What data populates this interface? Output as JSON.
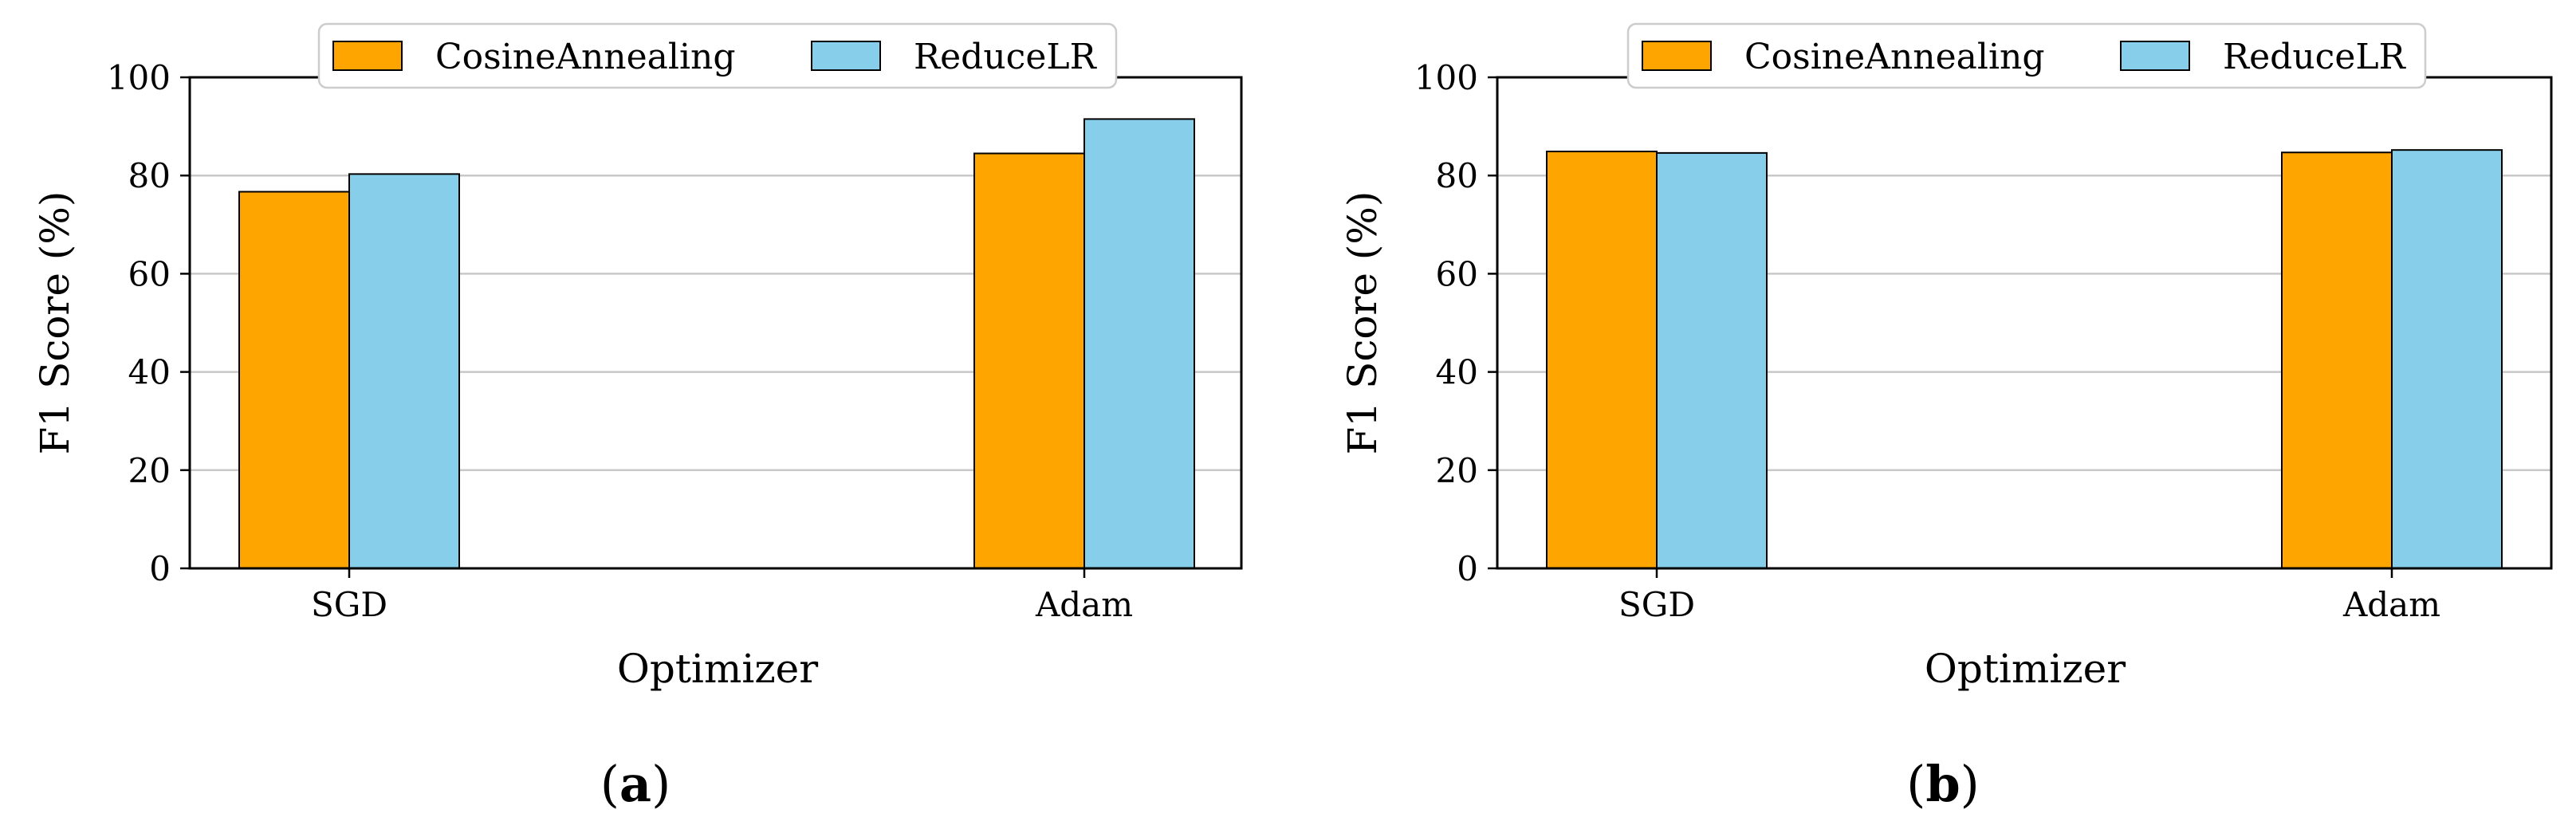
{
  "colors": {
    "CosineAnnealing": "#FFA500",
    "ReduceLR": "#87CEEB",
    "grid": "#c8c8c8",
    "axis": "#000000"
  },
  "chart_data": [
    {
      "type": "bar",
      "panel_label": "a",
      "categories": [
        "SGD",
        "Adam"
      ],
      "series": [
        {
          "name": "CosineAnnealing",
          "values": [
            76.7,
            84.5
          ]
        },
        {
          "name": "ReduceLR",
          "values": [
            80.3,
            91.5
          ]
        }
      ],
      "xlabel": "Optimizer",
      "ylabel": "F1 Score (%)",
      "ylim": [
        0,
        100
      ],
      "yticks": [
        "0",
        "20",
        "40",
        "60",
        "80",
        "100"
      ],
      "grid": "y",
      "legend_position": "top-center"
    },
    {
      "type": "bar",
      "panel_label": "b",
      "categories": [
        "SGD",
        "Adam"
      ],
      "series": [
        {
          "name": "CosineAnnealing",
          "values": [
            84.9,
            84.7
          ]
        },
        {
          "name": "ReduceLR",
          "values": [
            84.6,
            85.2
          ]
        }
      ],
      "xlabel": "Optimizer",
      "ylabel": "F1 Score (%)",
      "ylim": [
        0,
        100
      ],
      "yticks": [
        "0",
        "20",
        "40",
        "60",
        "80",
        "100"
      ],
      "grid": "y",
      "legend_position": "top-center"
    }
  ]
}
